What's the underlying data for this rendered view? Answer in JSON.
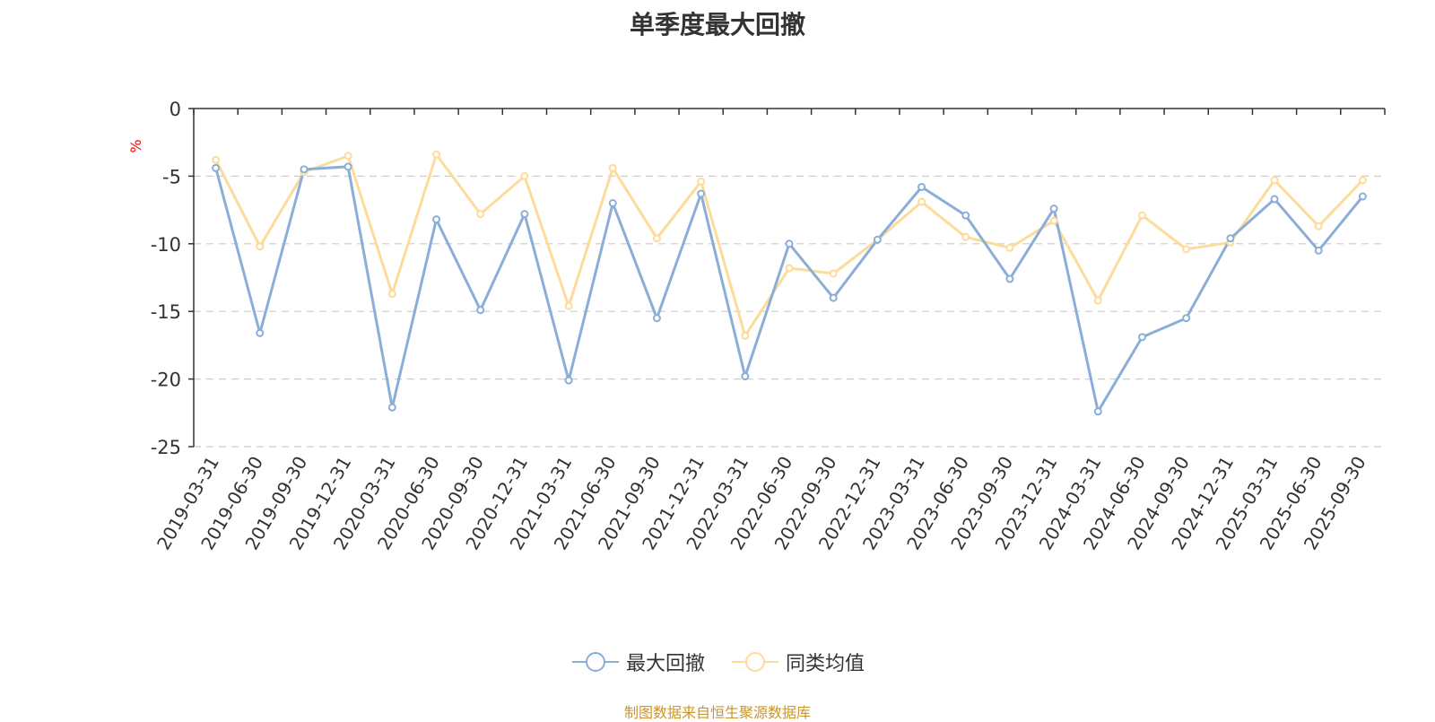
{
  "chart_data": {
    "type": "line",
    "title": "单季度最大回撤",
    "ylabel": "%",
    "ylim": [
      -25,
      0
    ],
    "yticks": [
      0,
      -5,
      -10,
      -15,
      -20,
      -25
    ],
    "grid": "dashed horizontal",
    "categories": [
      "2019-03-31",
      "2019-06-30",
      "2019-09-30",
      "2019-12-31",
      "2020-03-31",
      "2020-06-30",
      "2020-09-30",
      "2020-12-31",
      "2021-03-31",
      "2021-06-30",
      "2021-09-30",
      "2021-12-31",
      "2022-03-31",
      "2022-06-30",
      "2022-09-30",
      "2022-12-31",
      "2023-03-31",
      "2023-06-30",
      "2023-09-30",
      "2023-12-31",
      "2024-03-31",
      "2024-06-30",
      "2024-09-30",
      "2024-12-31",
      "2025-03-31",
      "2025-06-30",
      "2025-09-30"
    ],
    "series": [
      {
        "name": "最大回撤",
        "color": "#8aaed8",
        "values": [
          -4.4,
          -16.6,
          -4.5,
          -4.3,
          -22.1,
          -8.2,
          -14.9,
          -7.8,
          -20.1,
          -7.0,
          -15.5,
          -6.3,
          -19.8,
          -10.0,
          -14.0,
          -9.7,
          -5.8,
          -7.9,
          -12.6,
          -7.4,
          -22.4,
          -16.9,
          -15.5,
          -9.6,
          -6.7,
          -10.5,
          -6.5
        ]
      },
      {
        "name": "同类均值",
        "color": "#fddb9a",
        "values": [
          -3.8,
          -10.2,
          -4.7,
          -3.5,
          -13.7,
          -3.4,
          -7.8,
          -5.0,
          -14.6,
          -4.4,
          -9.6,
          -5.4,
          -16.8,
          -11.8,
          -12.2,
          -9.7,
          -6.9,
          -9.5,
          -10.3,
          -8.3,
          -14.2,
          -7.9,
          -10.4,
          -9.9,
          -5.3,
          -8.7,
          -5.3
        ]
      }
    ]
  },
  "source": "制图数据来自恒生聚源数据库"
}
